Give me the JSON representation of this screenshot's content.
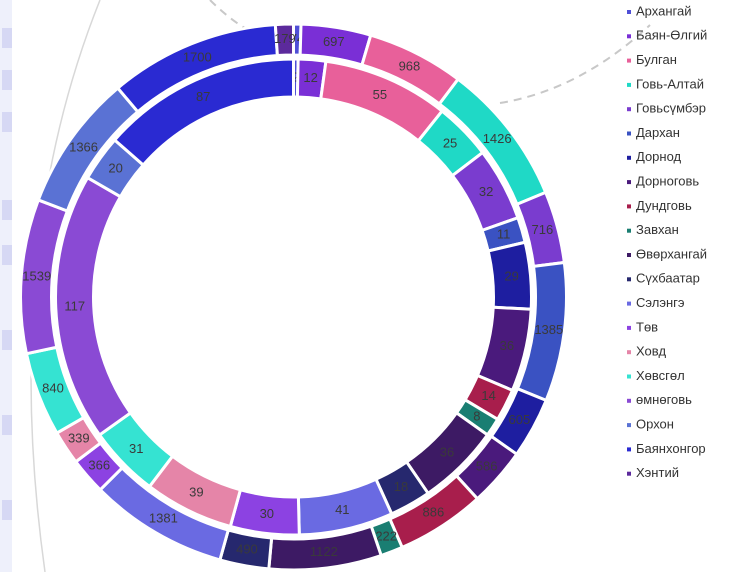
{
  "chart_data": {
    "type": "donut",
    "categories": [
      "Архангай",
      "Баян-Өлгий",
      "Булган",
      "Говь-Алтай",
      "Говьсүмбэр",
      "Дархан",
      "Дорнод",
      "Дорноговь",
      "Дундговь",
      "Завхан",
      "Өвөрхангай",
      "Сүхбаатар",
      "Сэлэнгэ",
      "Төв",
      "Ховд",
      "Хөвсгөл",
      "өмнөговь",
      "Орхон",
      "Баянхонгор",
      "Хэнтий"
    ],
    "colors": [
      "#4f4fd6",
      "#7a2fd6",
      "#e8609a",
      "#1fd9c6",
      "#7a3ccf",
      "#3a52c2",
      "#1e1ea0",
      "#4a1a7c",
      "#a81e4c",
      "#1a7e72",
      "#3d1a64",
      "#26286e",
      "#6a6ae2",
      "#8c42e2",
      "#e585a8",
      "#35e3d2",
      "#8a4ad4",
      "#5a72d4",
      "#2a2ad2",
      "#5c2a9c"
    ],
    "series": [
      {
        "values": [
          74,
          697,
          968,
          1426,
          716,
          1385,
          605,
          586,
          886,
          222,
          1122,
          490,
          1381,
          366,
          339,
          840,
          1539,
          1366,
          1700,
          179
        ]
      },
      {
        "values": [
          2,
          12,
          55,
          25,
          32,
          11,
          29,
          36,
          14,
          8,
          36,
          18,
          41,
          30,
          39,
          31,
          117,
          20,
          87,
          0
        ]
      }
    ],
    "legend": "right"
  }
}
